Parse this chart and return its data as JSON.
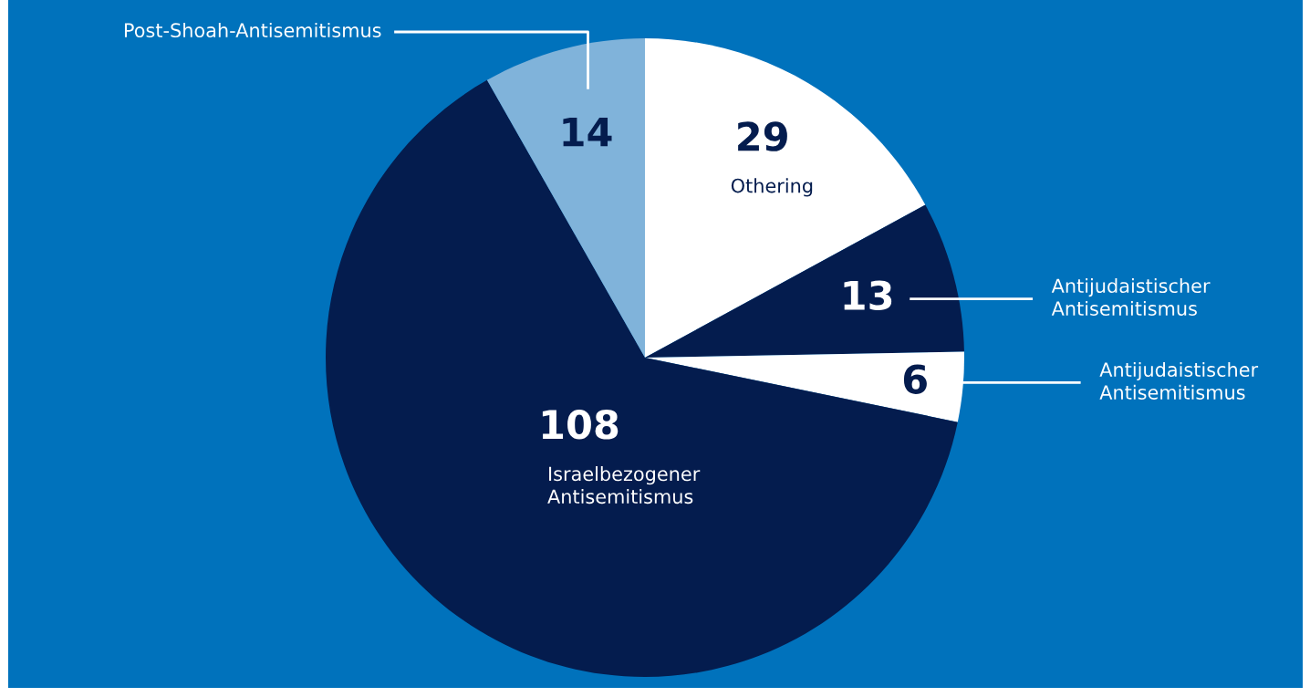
{
  "chart_data": {
    "type": "pie",
    "categories": [
      "Othering",
      "Antijudaistischer Antisemitismus",
      "Antijudaistischer Antisemitismus",
      "Israelbezogener Antisemitismus",
      "Post-Shoah-Antisemitismus"
    ],
    "values": [
      29,
      13,
      6,
      108,
      14
    ],
    "colors": [
      "#ffffff",
      "#041c4e",
      "#ffffff",
      "#041c4e",
      "#80b3da"
    ],
    "data_labels": true
  }
}
